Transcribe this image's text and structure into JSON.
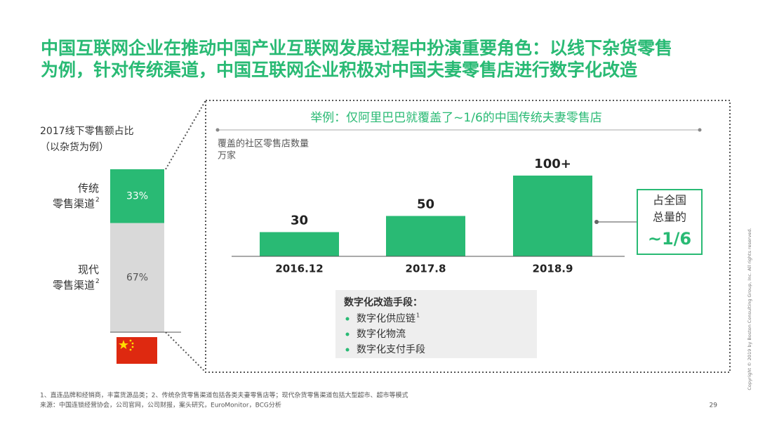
{
  "title_lines": [
    "中国互联网企业在推动中国产业互联网发展过程中扮演重要角色：以线下杂货零售",
    "为例，针对传统渠道，中国互联网企业积极对中国夫妻零售店进行数字化改造"
  ],
  "chart_data": [
    {
      "type": "stacked-bar",
      "title": "2017线下零售额占比",
      "subtitle": "（以杂货为例）",
      "ylim": [
        0,
        100
      ],
      "series": [
        {
          "name_lines": [
            "现代",
            "零售渠道"
          ],
          "note_mark": "2",
          "color": "#d9d9d9",
          "values": [
            67
          ],
          "value_labels": [
            "67%"
          ]
        },
        {
          "name_lines": [
            "传统",
            "零售渠道"
          ],
          "note_mark": "2",
          "color": "#29ba74",
          "values": [
            33
          ],
          "value_labels": [
            "33%"
          ]
        }
      ]
    },
    {
      "type": "bar",
      "title": "举例：仅阿里巴巴就覆盖了~1/6的中国传统夫妻零售店",
      "ylabel_lines": [
        "覆盖的社区零售店数量",
        "万家"
      ],
      "categories": [
        "2016.12",
        "2017.8",
        "2018.9"
      ],
      "values": [
        30,
        50,
        100
      ],
      "value_labels": [
        "30",
        "50",
        "100+"
      ],
      "color": "#29ba74",
      "ylim": [
        0,
        100
      ],
      "callout": {
        "lines": [
          "占全国",
          "总量的"
        ],
        "highlight": "~1/6"
      },
      "box": {
        "heading": "数字化改造手段：",
        "items": [
          {
            "text": "数字化供应链",
            "note_mark": "1"
          },
          {
            "text": "数字化物流"
          },
          {
            "text": "数字化支付手段"
          }
        ]
      }
    }
  ],
  "footnotes": [
    "1、直连品牌和经销商，丰富货源品类；2、传统杂货零售渠道包括各类夫妻零售店等；现代杂货零售渠道包括大型超市、超市等模式",
    "来源：中国连锁经营协会，公司官网，公司财报，案头研究，EuroMonitor，BCG分析"
  ],
  "page_number": "29",
  "copyright": "Copyright © 2019 by Boston Consulting Group, Inc. All rights reserved."
}
